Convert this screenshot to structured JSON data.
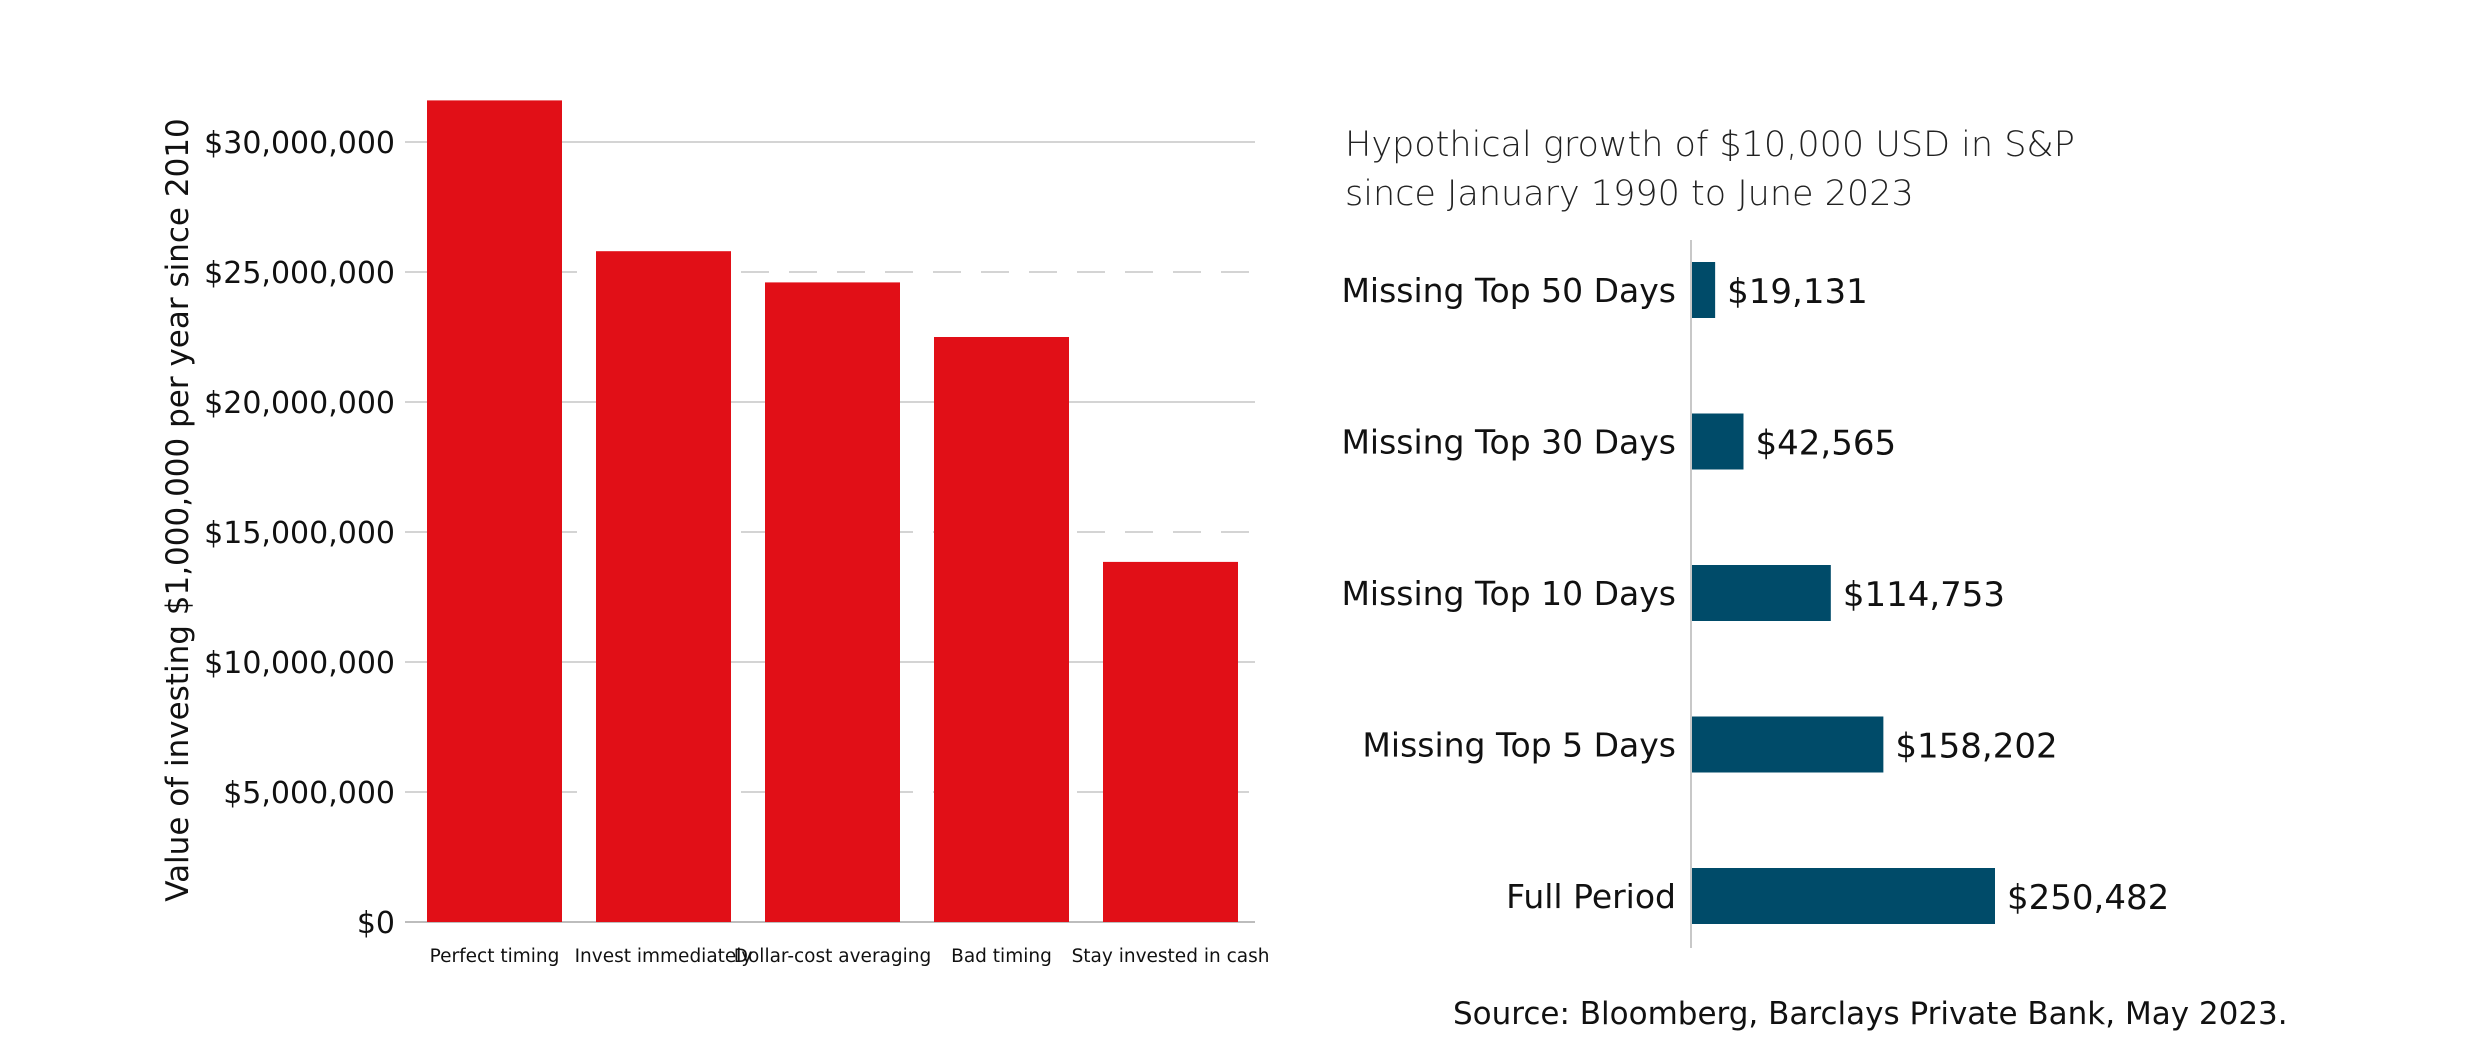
{
  "chart_data": [
    {
      "type": "bar",
      "orientation": "vertical",
      "title": "",
      "xlabel": "",
      "ylabel": "Value of investing $1,000,000 per year since 2010",
      "categories": [
        "Perfect timing",
        "Invest immediately",
        "Dollar-cost averaging",
        "Bad timing",
        "Stay invested in cash"
      ],
      "values": [
        31600000,
        25800000,
        24600000,
        22500000,
        13850000
      ],
      "ylim": [
        0,
        30000000
      ],
      "y_ticks": [
        "$0",
        "$5,000,000",
        "$10,000,000",
        "$15,000,000",
        "$20,000,000",
        "$25,000,000",
        "$30,000,000"
      ],
      "grid": true,
      "bar_color": "#e10f17"
    },
    {
      "type": "bar",
      "orientation": "horizontal",
      "title": "Hypothical growth of $10,000 USD in S&P since January 1990 to June 2023",
      "title_lines": [
        "Hypothical growth of $10,000 USD in S&P",
        "since January 1990 to June 2023"
      ],
      "categories": [
        "Missing Top 50 Days",
        "Missing Top 30 Days",
        "Missing Top 10 Days",
        "Missing Top 5 Days",
        "Full Period"
      ],
      "values": [
        19131,
        42565,
        114753,
        158202,
        250482
      ],
      "value_labels": [
        "$19,131",
        "$42,565",
        "$114,753",
        "$158,202",
        "$250,482"
      ],
      "grid": false,
      "bar_color": "#004b69"
    }
  ],
  "source": "Source: Bloomberg, Barclays Private Bank, May 2023."
}
